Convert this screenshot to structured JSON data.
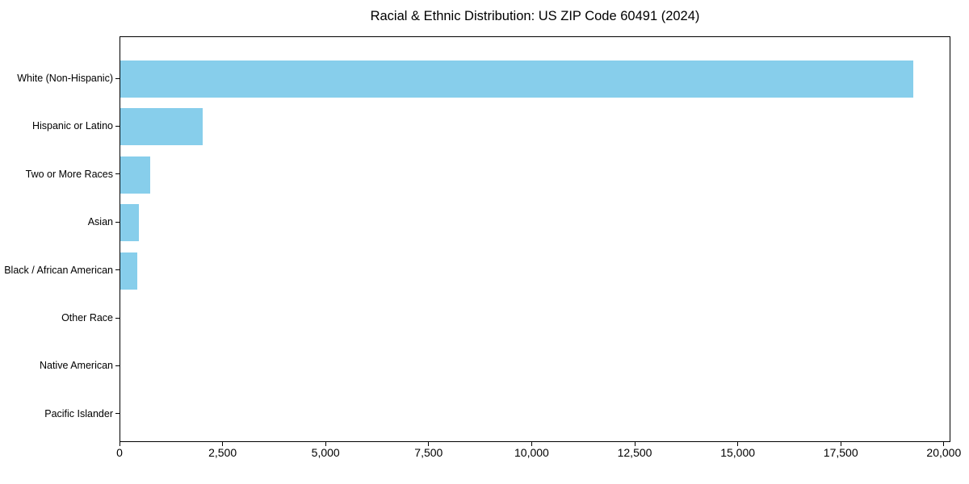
{
  "chart_data": {
    "type": "bar",
    "orientation": "horizontal",
    "title": "Racial & Ethnic Distribution: US ZIP Code 60491 (2024)",
    "categories": [
      "White (Non-Hispanic)",
      "Hispanic or Latino",
      "Two or More Races",
      "Asian",
      "Black / African American",
      "Other Race",
      "Native American",
      "Pacific Islander"
    ],
    "values": [
      19230,
      2000,
      730,
      460,
      420,
      0,
      0,
      0
    ],
    "xlabel": "",
    "ylabel": "",
    "xlim": [
      0,
      20160
    ],
    "x_ticks": [
      0,
      2500,
      5000,
      7500,
      10000,
      12500,
      15000,
      17500,
      20000
    ],
    "x_tick_labels": [
      "0",
      "2,500",
      "5,000",
      "7,500",
      "10,000",
      "12,500",
      "15,000",
      "17,500",
      "20,000"
    ],
    "bar_color": "#87CEEB",
    "axis_color": "#000000",
    "text_color": "#000000",
    "grid": false,
    "legend": null
  }
}
